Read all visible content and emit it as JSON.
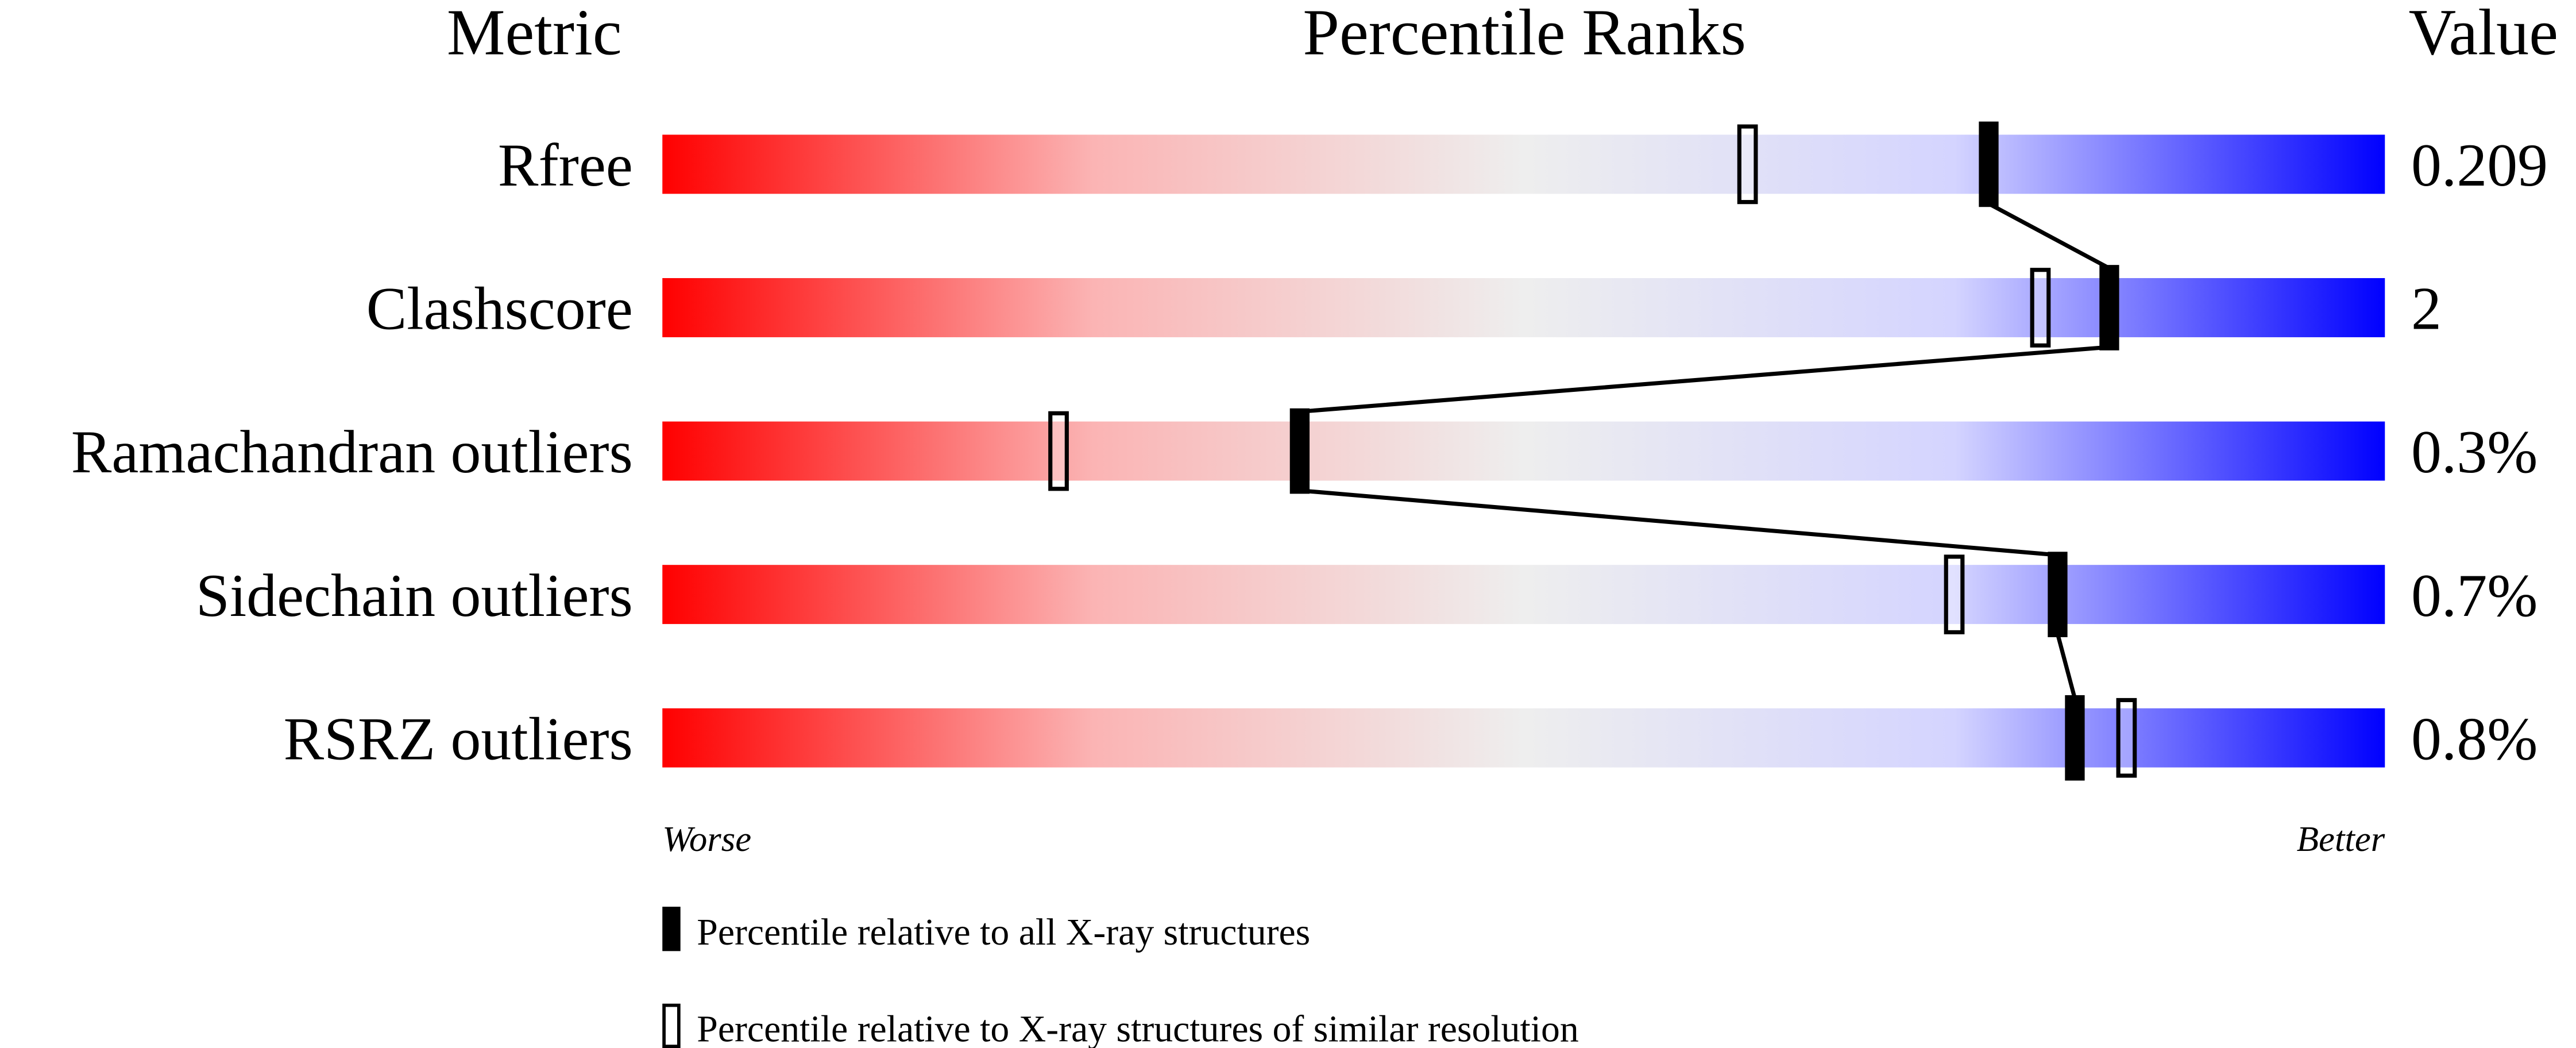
{
  "chart_data": {
    "type": "percentile-slider",
    "headers": {
      "metric": "Metric",
      "ranks": "Percentile Ranks",
      "value": "Value"
    },
    "xlim": [
      0,
      100
    ],
    "axis_labels": {
      "left": "Worse",
      "right": "Better"
    },
    "colors": {
      "worse": "#ff0000",
      "middle": "#eeeeee",
      "better": "#0000ff",
      "marker": "#000000"
    },
    "rows": [
      {
        "metric": "Rfree",
        "value": "0.209",
        "percentile_all": 77,
        "percentile_similar": 63
      },
      {
        "metric": "Clashscore",
        "value": "2",
        "percentile_all": 84,
        "percentile_similar": 80
      },
      {
        "metric": "Ramachandran outliers",
        "value": "0.3%",
        "percentile_all": 37,
        "percentile_similar": 23
      },
      {
        "metric": "Sidechain outliers",
        "value": "0.7%",
        "percentile_all": 81,
        "percentile_similar": 75
      },
      {
        "metric": "RSRZ outliers",
        "value": "0.8%",
        "percentile_all": 82,
        "percentile_similar": 85
      }
    ],
    "legend": [
      {
        "marker": "filled",
        "label": "Percentile relative to all X-ray structures"
      },
      {
        "marker": "open",
        "label": "Percentile relative to X-ray structures of similar resolution"
      }
    ]
  }
}
